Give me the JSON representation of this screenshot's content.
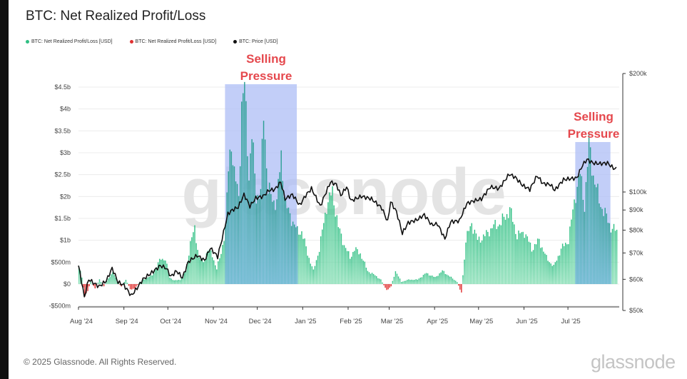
{
  "title": "BTC: Net Realized Profit/Loss",
  "footer": {
    "copyright": "© 2025 Glassnode. All Rights Reserved.",
    "logo": "glassnode"
  },
  "watermark": "glassnode",
  "colors": {
    "profit": "#3cc68a",
    "loss": "#e03131",
    "price": "#111111",
    "highlight": "#aebdf5",
    "annotation": "#e5484d"
  },
  "legend": [
    {
      "label": "BTC: Net Realized Profit/Loss [USD]",
      "color": "#2fbf83"
    },
    {
      "label": "BTC: Net Realized Profit/Loss [USD]",
      "color": "#e03131"
    },
    {
      "label": "BTC: Price [USD]",
      "color": "#111111"
    }
  ],
  "annotations": [
    {
      "lines": [
        "Selling",
        "Pressure"
      ],
      "from": "2024-11-09",
      "to": "2024-12-28"
    },
    {
      "lines": [
        "Selling",
        "Pressure"
      ],
      "from": "2025-07-06",
      "to": "2025-07-30"
    }
  ],
  "chart_data": {
    "type": "bar+line",
    "title": "BTC: Net Realized Profit/Loss",
    "x_range": [
      "2024-08-01",
      "2025-08-05"
    ],
    "x_ticks": [
      {
        "label": "Aug '24",
        "date": "2024-08-01"
      },
      {
        "label": "Sep '24",
        "date": "2024-09-01"
      },
      {
        "label": "Oct '24",
        "date": "2024-10-01"
      },
      {
        "label": "Nov '24",
        "date": "2024-11-01"
      },
      {
        "label": "Dec '24",
        "date": "2024-12-01"
      },
      {
        "label": "Jan '25",
        "date": "2025-01-01"
      },
      {
        "label": "Feb '25",
        "date": "2025-02-01"
      },
      {
        "label": "Mar '25",
        "date": "2025-03-01"
      },
      {
        "label": "Apr '25",
        "date": "2025-04-01"
      },
      {
        "label": "May '25",
        "date": "2025-05-01"
      },
      {
        "label": "Jun '25",
        "date": "2025-06-01"
      },
      {
        "label": "Jul '25",
        "date": "2025-07-01"
      }
    ],
    "y_left": {
      "range": [
        -500000000,
        4500000000
      ],
      "ticks": [
        {
          "label": "-$500m",
          "value": -500000000
        },
        {
          "label": "$0",
          "value": 0
        },
        {
          "label": "$500m",
          "value": 500000000
        },
        {
          "label": "$1b",
          "value": 1000000000
        },
        {
          "label": "$1.5b",
          "value": 1500000000
        },
        {
          "label": "$2b",
          "value": 2000000000
        },
        {
          "label": "$2.5b",
          "value": 2500000000
        },
        {
          "label": "$3b",
          "value": 3000000000
        },
        {
          "label": "$3.5b",
          "value": 3500000000
        },
        {
          "label": "$4b",
          "value": 4000000000
        },
        {
          "label": "$4.5b",
          "value": 4500000000
        }
      ]
    },
    "y_right": {
      "scale": "log",
      "range": [
        50000,
        200000
      ],
      "ticks": [
        {
          "label": "$50k",
          "value": 50000
        },
        {
          "label": "$60k",
          "value": 60000
        },
        {
          "label": "$70k",
          "value": 70000
        },
        {
          "label": "$80k",
          "value": 80000
        },
        {
          "label": "$90k",
          "value": 90000
        },
        {
          "label": "$100k",
          "value": 100000
        },
        {
          "label": "$200k",
          "value": 200000
        }
      ]
    },
    "series": [
      {
        "name": "BTC: Net Realized Profit/Loss [USD]",
        "kind": "bar",
        "unit": "USD",
        "keypoints": [
          [
            "2024-08-01",
            400000000
          ],
          [
            "2024-08-03",
            150000000
          ],
          [
            "2024-08-05",
            -300000000
          ],
          [
            "2024-08-07",
            -150000000
          ],
          [
            "2024-08-09",
            50000000
          ],
          [
            "2024-08-12",
            -100000000
          ],
          [
            "2024-08-15",
            100000000
          ],
          [
            "2024-08-18",
            -50000000
          ],
          [
            "2024-08-21",
            120000000
          ],
          [
            "2024-08-24",
            280000000
          ],
          [
            "2024-08-27",
            60000000
          ],
          [
            "2024-08-30",
            -60000000
          ],
          [
            "2024-09-02",
            100000000
          ],
          [
            "2024-09-05",
            -120000000
          ],
          [
            "2024-09-08",
            -100000000
          ],
          [
            "2024-09-11",
            20000000
          ],
          [
            "2024-09-14",
            100000000
          ],
          [
            "2024-09-17",
            150000000
          ],
          [
            "2024-09-20",
            200000000
          ],
          [
            "2024-09-23",
            400000000
          ],
          [
            "2024-09-26",
            600000000
          ],
          [
            "2024-09-29",
            550000000
          ],
          [
            "2024-10-02",
            150000000
          ],
          [
            "2024-10-05",
            80000000
          ],
          [
            "2024-10-09",
            100000000
          ],
          [
            "2024-10-13",
            300000000
          ],
          [
            "2024-10-16",
            950000000
          ],
          [
            "2024-10-19",
            1250000000
          ],
          [
            "2024-10-22",
            600000000
          ],
          [
            "2024-10-25",
            500000000
          ],
          [
            "2024-10-28",
            800000000
          ],
          [
            "2024-10-31",
            650000000
          ],
          [
            "2024-11-03",
            350000000
          ],
          [
            "2024-11-06",
            700000000
          ],
          [
            "2024-11-09",
            1300000000
          ],
          [
            "2024-11-11",
            2600000000
          ],
          [
            "2024-11-13",
            3300000000
          ],
          [
            "2024-11-15",
            2500000000
          ],
          [
            "2024-11-18",
            2000000000
          ],
          [
            "2024-11-20",
            4100000000
          ],
          [
            "2024-11-22",
            4500000000
          ],
          [
            "2024-11-25",
            2500000000
          ],
          [
            "2024-11-27",
            3400000000
          ],
          [
            "2024-11-30",
            2000000000
          ],
          [
            "2024-12-03",
            2100000000
          ],
          [
            "2024-12-05",
            3900000000
          ],
          [
            "2024-12-08",
            2200000000
          ],
          [
            "2024-12-11",
            1900000000
          ],
          [
            "2024-12-14",
            1900000000
          ],
          [
            "2024-12-17",
            2900000000
          ],
          [
            "2024-12-20",
            1800000000
          ],
          [
            "2024-12-24",
            1500000000
          ],
          [
            "2024-12-28",
            1200000000
          ],
          [
            "2024-12-31",
            1200000000
          ],
          [
            "2025-01-04",
            700000000
          ],
          [
            "2025-01-08",
            300000000
          ],
          [
            "2025-01-12",
            800000000
          ],
          [
            "2025-01-17",
            1800000000
          ],
          [
            "2025-01-21",
            2100000000
          ],
          [
            "2025-01-25",
            1300000000
          ],
          [
            "2025-01-29",
            900000000
          ],
          [
            "2025-02-02",
            600000000
          ],
          [
            "2025-02-05",
            800000000
          ],
          [
            "2025-02-09",
            700000000
          ],
          [
            "2025-02-14",
            300000000
          ],
          [
            "2025-02-19",
            200000000
          ],
          [
            "2025-02-23",
            100000000
          ],
          [
            "2025-02-27",
            -150000000
          ],
          [
            "2025-03-02",
            -50000000
          ],
          [
            "2025-03-05",
            300000000
          ],
          [
            "2025-03-09",
            50000000
          ],
          [
            "2025-03-14",
            100000000
          ],
          [
            "2025-03-20",
            100000000
          ],
          [
            "2025-03-26",
            250000000
          ],
          [
            "2025-04-01",
            150000000
          ],
          [
            "2025-04-06",
            300000000
          ],
          [
            "2025-04-10",
            200000000
          ],
          [
            "2025-04-16",
            50000000
          ],
          [
            "2025-04-19",
            -200000000
          ],
          [
            "2025-04-22",
            1000000000
          ],
          [
            "2025-04-26",
            1400000000
          ],
          [
            "2025-04-30",
            1000000000
          ],
          [
            "2025-05-05",
            1100000000
          ],
          [
            "2025-05-10",
            1300000000
          ],
          [
            "2025-05-16",
            1400000000
          ],
          [
            "2025-05-22",
            1700000000
          ],
          [
            "2025-05-27",
            1100000000
          ],
          [
            "2025-06-01",
            1200000000
          ],
          [
            "2025-06-06",
            800000000
          ],
          [
            "2025-06-11",
            1000000000
          ],
          [
            "2025-06-16",
            600000000
          ],
          [
            "2025-06-21",
            400000000
          ],
          [
            "2025-06-26",
            800000000
          ],
          [
            "2025-07-01",
            1000000000
          ],
          [
            "2025-07-06",
            2100000000
          ],
          [
            "2025-07-09",
            2500000000
          ],
          [
            "2025-07-12",
            1800000000
          ],
          [
            "2025-07-15",
            3200000000
          ],
          [
            "2025-07-18",
            2500000000
          ],
          [
            "2025-07-22",
            1900000000
          ],
          [
            "2025-07-26",
            1600000000
          ],
          [
            "2025-07-30",
            1300000000
          ],
          [
            "2025-08-03",
            1200000000
          ]
        ]
      },
      {
        "name": "BTC: Price [USD]",
        "kind": "line",
        "axis": "right",
        "unit": "USD",
        "keypoints": [
          [
            "2024-08-01",
            65000
          ],
          [
            "2024-08-05",
            54000
          ],
          [
            "2024-08-08",
            60000
          ],
          [
            "2024-08-12",
            58500
          ],
          [
            "2024-08-15",
            57500
          ],
          [
            "2024-08-20",
            59500
          ],
          [
            "2024-08-24",
            64000
          ],
          [
            "2024-08-28",
            59000
          ],
          [
            "2024-09-01",
            58000
          ],
          [
            "2024-09-06",
            54500
          ],
          [
            "2024-09-10",
            57000
          ],
          [
            "2024-09-14",
            60000
          ],
          [
            "2024-09-19",
            62000
          ],
          [
            "2024-09-26",
            65000
          ],
          [
            "2024-09-30",
            64000
          ],
          [
            "2024-10-03",
            61000
          ],
          [
            "2024-10-07",
            63000
          ],
          [
            "2024-10-11",
            60500
          ],
          [
            "2024-10-15",
            66500
          ],
          [
            "2024-10-21",
            69000
          ],
          [
            "2024-10-26",
            67000
          ],
          [
            "2024-10-30",
            72000
          ],
          [
            "2024-11-04",
            68500
          ],
          [
            "2024-11-07",
            76000
          ],
          [
            "2024-11-11",
            88000
          ],
          [
            "2024-11-14",
            90000
          ],
          [
            "2024-11-18",
            91500
          ],
          [
            "2024-11-22",
            98500
          ],
          [
            "2024-11-26",
            92000
          ],
          [
            "2024-11-30",
            96500
          ],
          [
            "2024-12-05",
            97500
          ],
          [
            "2024-12-09",
            101000
          ],
          [
            "2024-12-13",
            101500
          ],
          [
            "2024-12-17",
            106000
          ],
          [
            "2024-12-20",
            96000
          ],
          [
            "2024-12-25",
            98500
          ],
          [
            "2024-12-30",
            92500
          ],
          [
            "2025-01-03",
            98000
          ],
          [
            "2025-01-07",
            102000
          ],
          [
            "2025-01-13",
            92000
          ],
          [
            "2025-01-20",
            106000
          ],
          [
            "2025-01-24",
            104500
          ],
          [
            "2025-01-27",
            98000
          ],
          [
            "2025-01-31",
            103000
          ],
          [
            "2025-02-03",
            95000
          ],
          [
            "2025-02-10",
            97500
          ],
          [
            "2025-02-17",
            96000
          ],
          [
            "2025-02-24",
            91000
          ],
          [
            "2025-02-28",
            84000
          ],
          [
            "2025-03-02",
            94500
          ],
          [
            "2025-03-06",
            89000
          ],
          [
            "2025-03-10",
            78500
          ],
          [
            "2025-03-14",
            83500
          ],
          [
            "2025-03-20",
            85000
          ],
          [
            "2025-03-25",
            87500
          ],
          [
            "2025-03-30",
            82500
          ],
          [
            "2025-04-03",
            83000
          ],
          [
            "2025-04-08",
            76000
          ],
          [
            "2025-04-12",
            84000
          ],
          [
            "2025-04-18",
            84500
          ],
          [
            "2025-04-23",
            93500
          ],
          [
            "2025-04-28",
            95000
          ],
          [
            "2025-05-03",
            96000
          ],
          [
            "2025-05-09",
            103000
          ],
          [
            "2025-05-15",
            102000
          ],
          [
            "2025-05-22",
            111000
          ],
          [
            "2025-05-26",
            109000
          ],
          [
            "2025-05-31",
            104000
          ],
          [
            "2025-06-05",
            101500
          ],
          [
            "2025-06-10",
            110000
          ],
          [
            "2025-06-14",
            105000
          ],
          [
            "2025-06-19",
            104500
          ],
          [
            "2025-06-22",
            101000
          ],
          [
            "2025-06-28",
            107500
          ],
          [
            "2025-07-02",
            108000
          ],
          [
            "2025-07-07",
            108500
          ],
          [
            "2025-07-11",
            117000
          ],
          [
            "2025-07-14",
            121000
          ],
          [
            "2025-07-18",
            118500
          ],
          [
            "2025-07-23",
            118000
          ],
          [
            "2025-07-28",
            118500
          ],
          [
            "2025-08-01",
            115000
          ],
          [
            "2025-08-03",
            114500
          ]
        ]
      }
    ]
  }
}
